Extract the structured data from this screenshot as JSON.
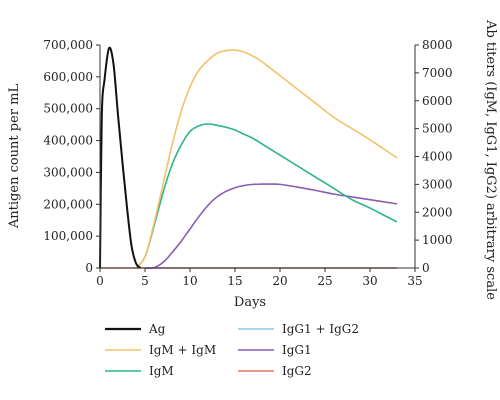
{
  "chart_data": {
    "type": "line",
    "xlabel": "Days",
    "ylabel_left": "Antigen count per mL",
    "ylabel_right": "Ab titers (IgM, IgG1, IgG2) arbitrary scale",
    "xlim": [
      0,
      35
    ],
    "ylim_left": [
      0,
      700000
    ],
    "ylim_right": [
      0,
      8000
    ],
    "x_ticks": [
      "0",
      "5",
      "10",
      "15",
      "20",
      "25",
      "30",
      "35"
    ],
    "y_left_ticks": [
      "0",
      "100,000",
      "200,000",
      "300,000",
      "400,000",
      "500,000",
      "600,000",
      "700,000"
    ],
    "y_right_ticks": [
      "0",
      "1000",
      "2000",
      "3000",
      "4000",
      "5000",
      "6000",
      "7000",
      "8000"
    ],
    "grid": false,
    "legend_position": "bottom",
    "series": [
      {
        "name": "Ag",
        "axis": "left",
        "color": "#111111",
        "points": [
          [
            0,
            0
          ],
          [
            0.2,
            480000
          ],
          [
            0.5,
            590000
          ],
          [
            1,
            690000
          ],
          [
            1.5,
            640000
          ],
          [
            2,
            480000
          ],
          [
            2.5,
            330000
          ],
          [
            3,
            190000
          ],
          [
            3.5,
            70000
          ],
          [
            4,
            15000
          ],
          [
            4.5,
            0
          ]
        ]
      },
      {
        "name": "IgM + IgM",
        "axis": "right",
        "color": "#f2c26b",
        "points": [
          [
            4,
            0
          ],
          [
            5,
            400
          ],
          [
            6,
            1600
          ],
          [
            7,
            3000
          ],
          [
            8,
            4400
          ],
          [
            9,
            5600
          ],
          [
            10,
            6500
          ],
          [
            11,
            7100
          ],
          [
            12,
            7450
          ],
          [
            13,
            7700
          ],
          [
            14,
            7800
          ],
          [
            15,
            7820
          ],
          [
            16,
            7750
          ],
          [
            17,
            7600
          ],
          [
            18,
            7400
          ],
          [
            19,
            7150
          ],
          [
            20,
            6900
          ],
          [
            22,
            6400
          ],
          [
            24,
            5900
          ],
          [
            26,
            5400
          ],
          [
            28,
            5000
          ],
          [
            30,
            4600
          ],
          [
            33,
            3950
          ]
        ]
      },
      {
        "name": "IgM",
        "axis": "right",
        "color": "#2bb58a",
        "points": [
          [
            4,
            0
          ],
          [
            5,
            400
          ],
          [
            6,
            1500
          ],
          [
            7,
            2700
          ],
          [
            8,
            3700
          ],
          [
            9,
            4400
          ],
          [
            10,
            4900
          ],
          [
            11,
            5100
          ],
          [
            12,
            5170
          ],
          [
            13,
            5120
          ],
          [
            14,
            5050
          ],
          [
            15,
            4950
          ],
          [
            16,
            4800
          ],
          [
            17,
            4650
          ],
          [
            18,
            4450
          ],
          [
            20,
            4050
          ],
          [
            22,
            3650
          ],
          [
            24,
            3250
          ],
          [
            26,
            2850
          ],
          [
            28,
            2450
          ],
          [
            30,
            2150
          ],
          [
            33,
            1650
          ]
        ]
      },
      {
        "name": "IgG1 + IgG2",
        "axis": "right",
        "color": "#8ec9ee",
        "points": [
          [
            5,
            0
          ],
          [
            33,
            0
          ]
        ]
      },
      {
        "name": "IgG1",
        "axis": "right",
        "color": "#8a5db5",
        "points": [
          [
            5,
            0
          ],
          [
            6,
            10
          ],
          [
            7,
            200
          ],
          [
            8,
            550
          ],
          [
            9,
            950
          ],
          [
            10,
            1400
          ],
          [
            11,
            1850
          ],
          [
            12,
            2250
          ],
          [
            13,
            2550
          ],
          [
            14,
            2750
          ],
          [
            15,
            2880
          ],
          [
            16,
            2960
          ],
          [
            17,
            3000
          ],
          [
            18,
            3010
          ],
          [
            19,
            3010
          ],
          [
            20,
            3000
          ],
          [
            22,
            2900
          ],
          [
            24,
            2780
          ],
          [
            26,
            2650
          ],
          [
            28,
            2550
          ],
          [
            30,
            2450
          ],
          [
            33,
            2300
          ]
        ]
      },
      {
        "name": "IgG2",
        "axis": "right",
        "color": "#e8735f",
        "points": [
          [
            0,
            0
          ],
          [
            33,
            0
          ]
        ]
      }
    ]
  }
}
